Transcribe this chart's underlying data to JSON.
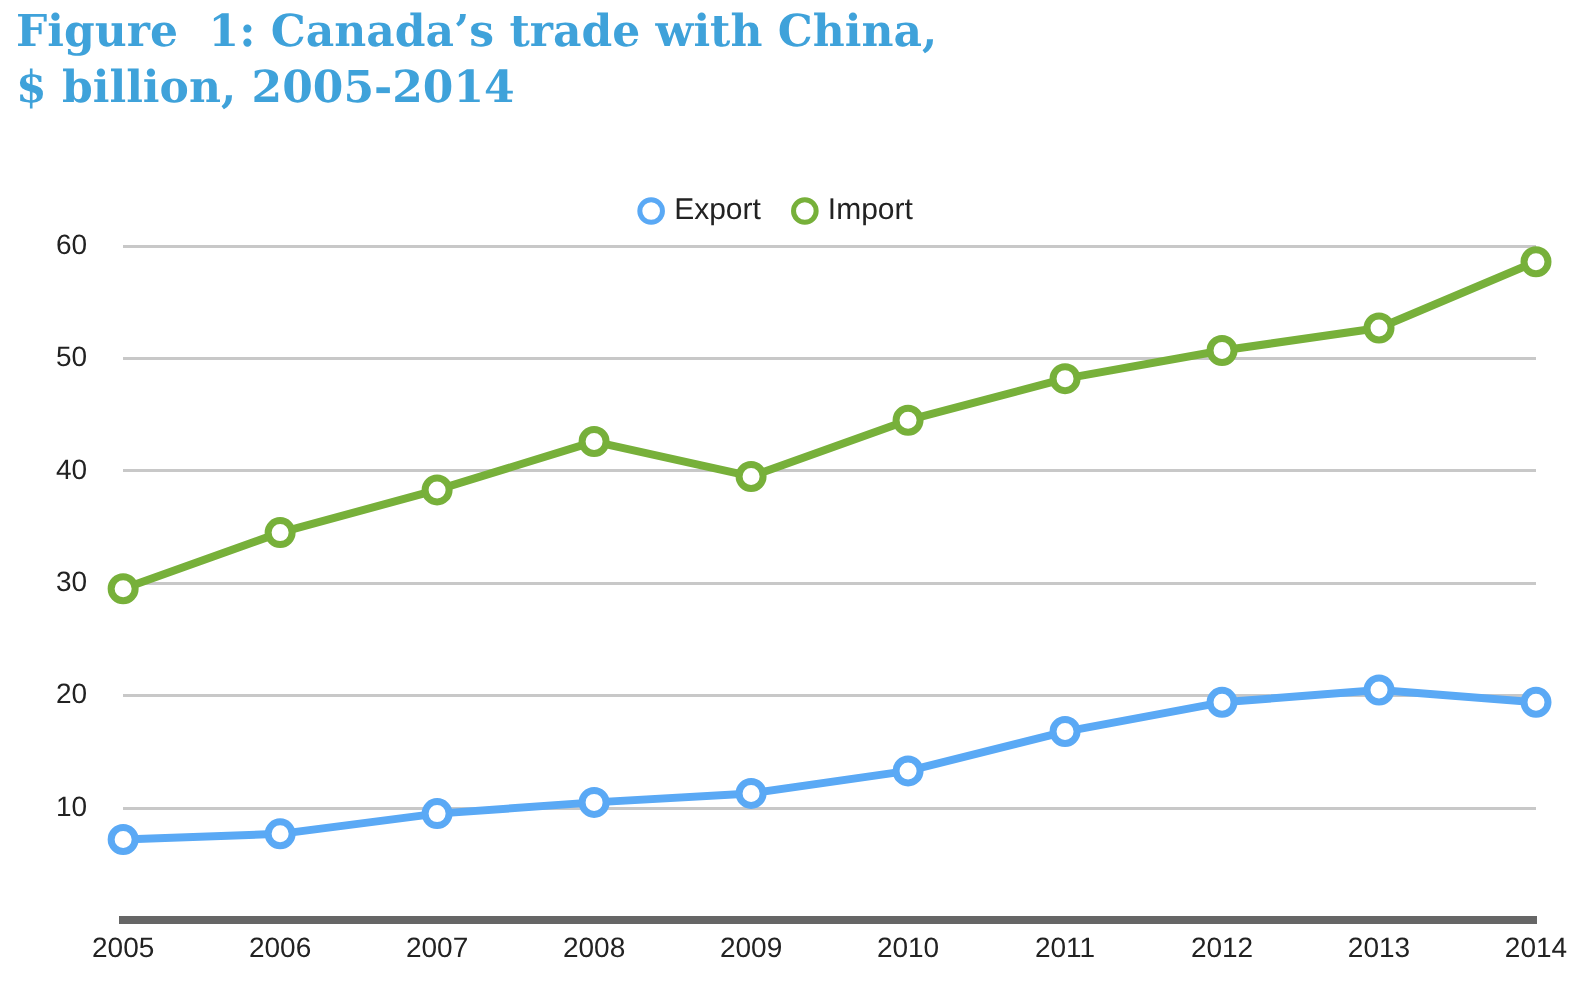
{
  "chart_data": {
    "type": "line",
    "title": "Figure  1: Canada’s trade with China,\n$ billion, 2005-2014",
    "categories": [
      "2005",
      "2006",
      "2007",
      "2008",
      "2009",
      "2010",
      "2011",
      "2012",
      "2013",
      "2014"
    ],
    "series": [
      {
        "name": "Export",
        "color": "#5aa9f5",
        "values": [
          7.2,
          7.7,
          9.5,
          10.5,
          11.3,
          13.3,
          16.8,
          19.4,
          20.5,
          19.4
        ]
      },
      {
        "name": "Import",
        "color": "#77b03a",
        "values": [
          29.5,
          34.5,
          38.3,
          42.6,
          39.5,
          44.5,
          48.2,
          50.7,
          52.7,
          58.6
        ]
      }
    ],
    "ylim": [
      0,
      60
    ],
    "yticks": [
      10,
      20,
      30,
      40,
      50,
      60
    ],
    "grid": "y",
    "legend": "top",
    "marker": "circle",
    "line_style": "solid"
  }
}
